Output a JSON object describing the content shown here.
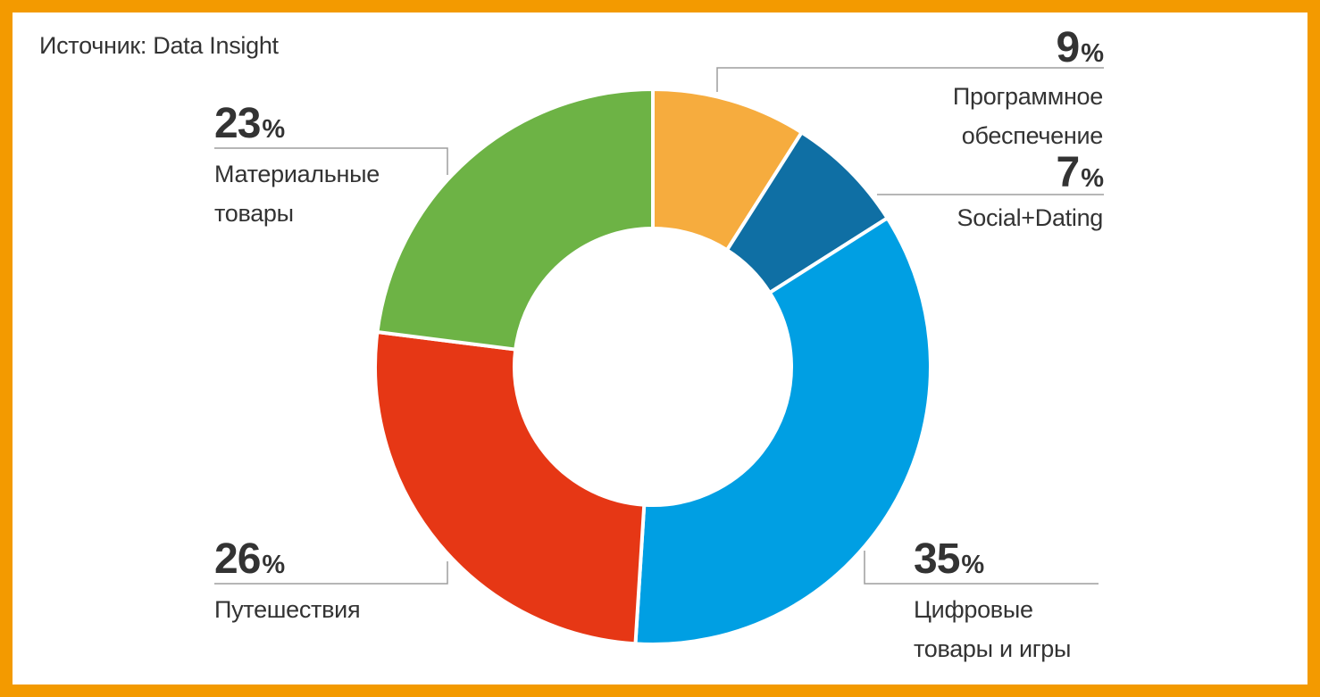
{
  "source": "Источник: Data Insight",
  "chart_data": {
    "type": "pie",
    "donut": true,
    "unit": "%",
    "slices": [
      {
        "label": "Программное обеспечение",
        "value": 9,
        "color": "#f6ac3e"
      },
      {
        "label": "Social+Dating",
        "value": 7,
        "color": "#0f6fa4"
      },
      {
        "label": "Цифровые товары и игры",
        "value": 35,
        "color": "#009fe3"
      },
      {
        "label": "Путешествия",
        "value": 26,
        "color": "#e63715"
      },
      {
        "label": "Материальные товары",
        "value": 23,
        "color": "#6db345"
      }
    ]
  },
  "labels": {
    "soft": {
      "value": "9",
      "sym": "%",
      "line1": "Программное",
      "line2": "обеспечение"
    },
    "social": {
      "value": "7",
      "sym": "%",
      "line1": "Social+Dating"
    },
    "digital": {
      "value": "35",
      "sym": "%",
      "line1": "Цифровые",
      "line2": "товары и игры"
    },
    "travel": {
      "value": "26",
      "sym": "%",
      "line1": "Путешествия"
    },
    "goods": {
      "value": "23",
      "sym": "%",
      "line1": "Материальные",
      "line2": "товары"
    }
  }
}
